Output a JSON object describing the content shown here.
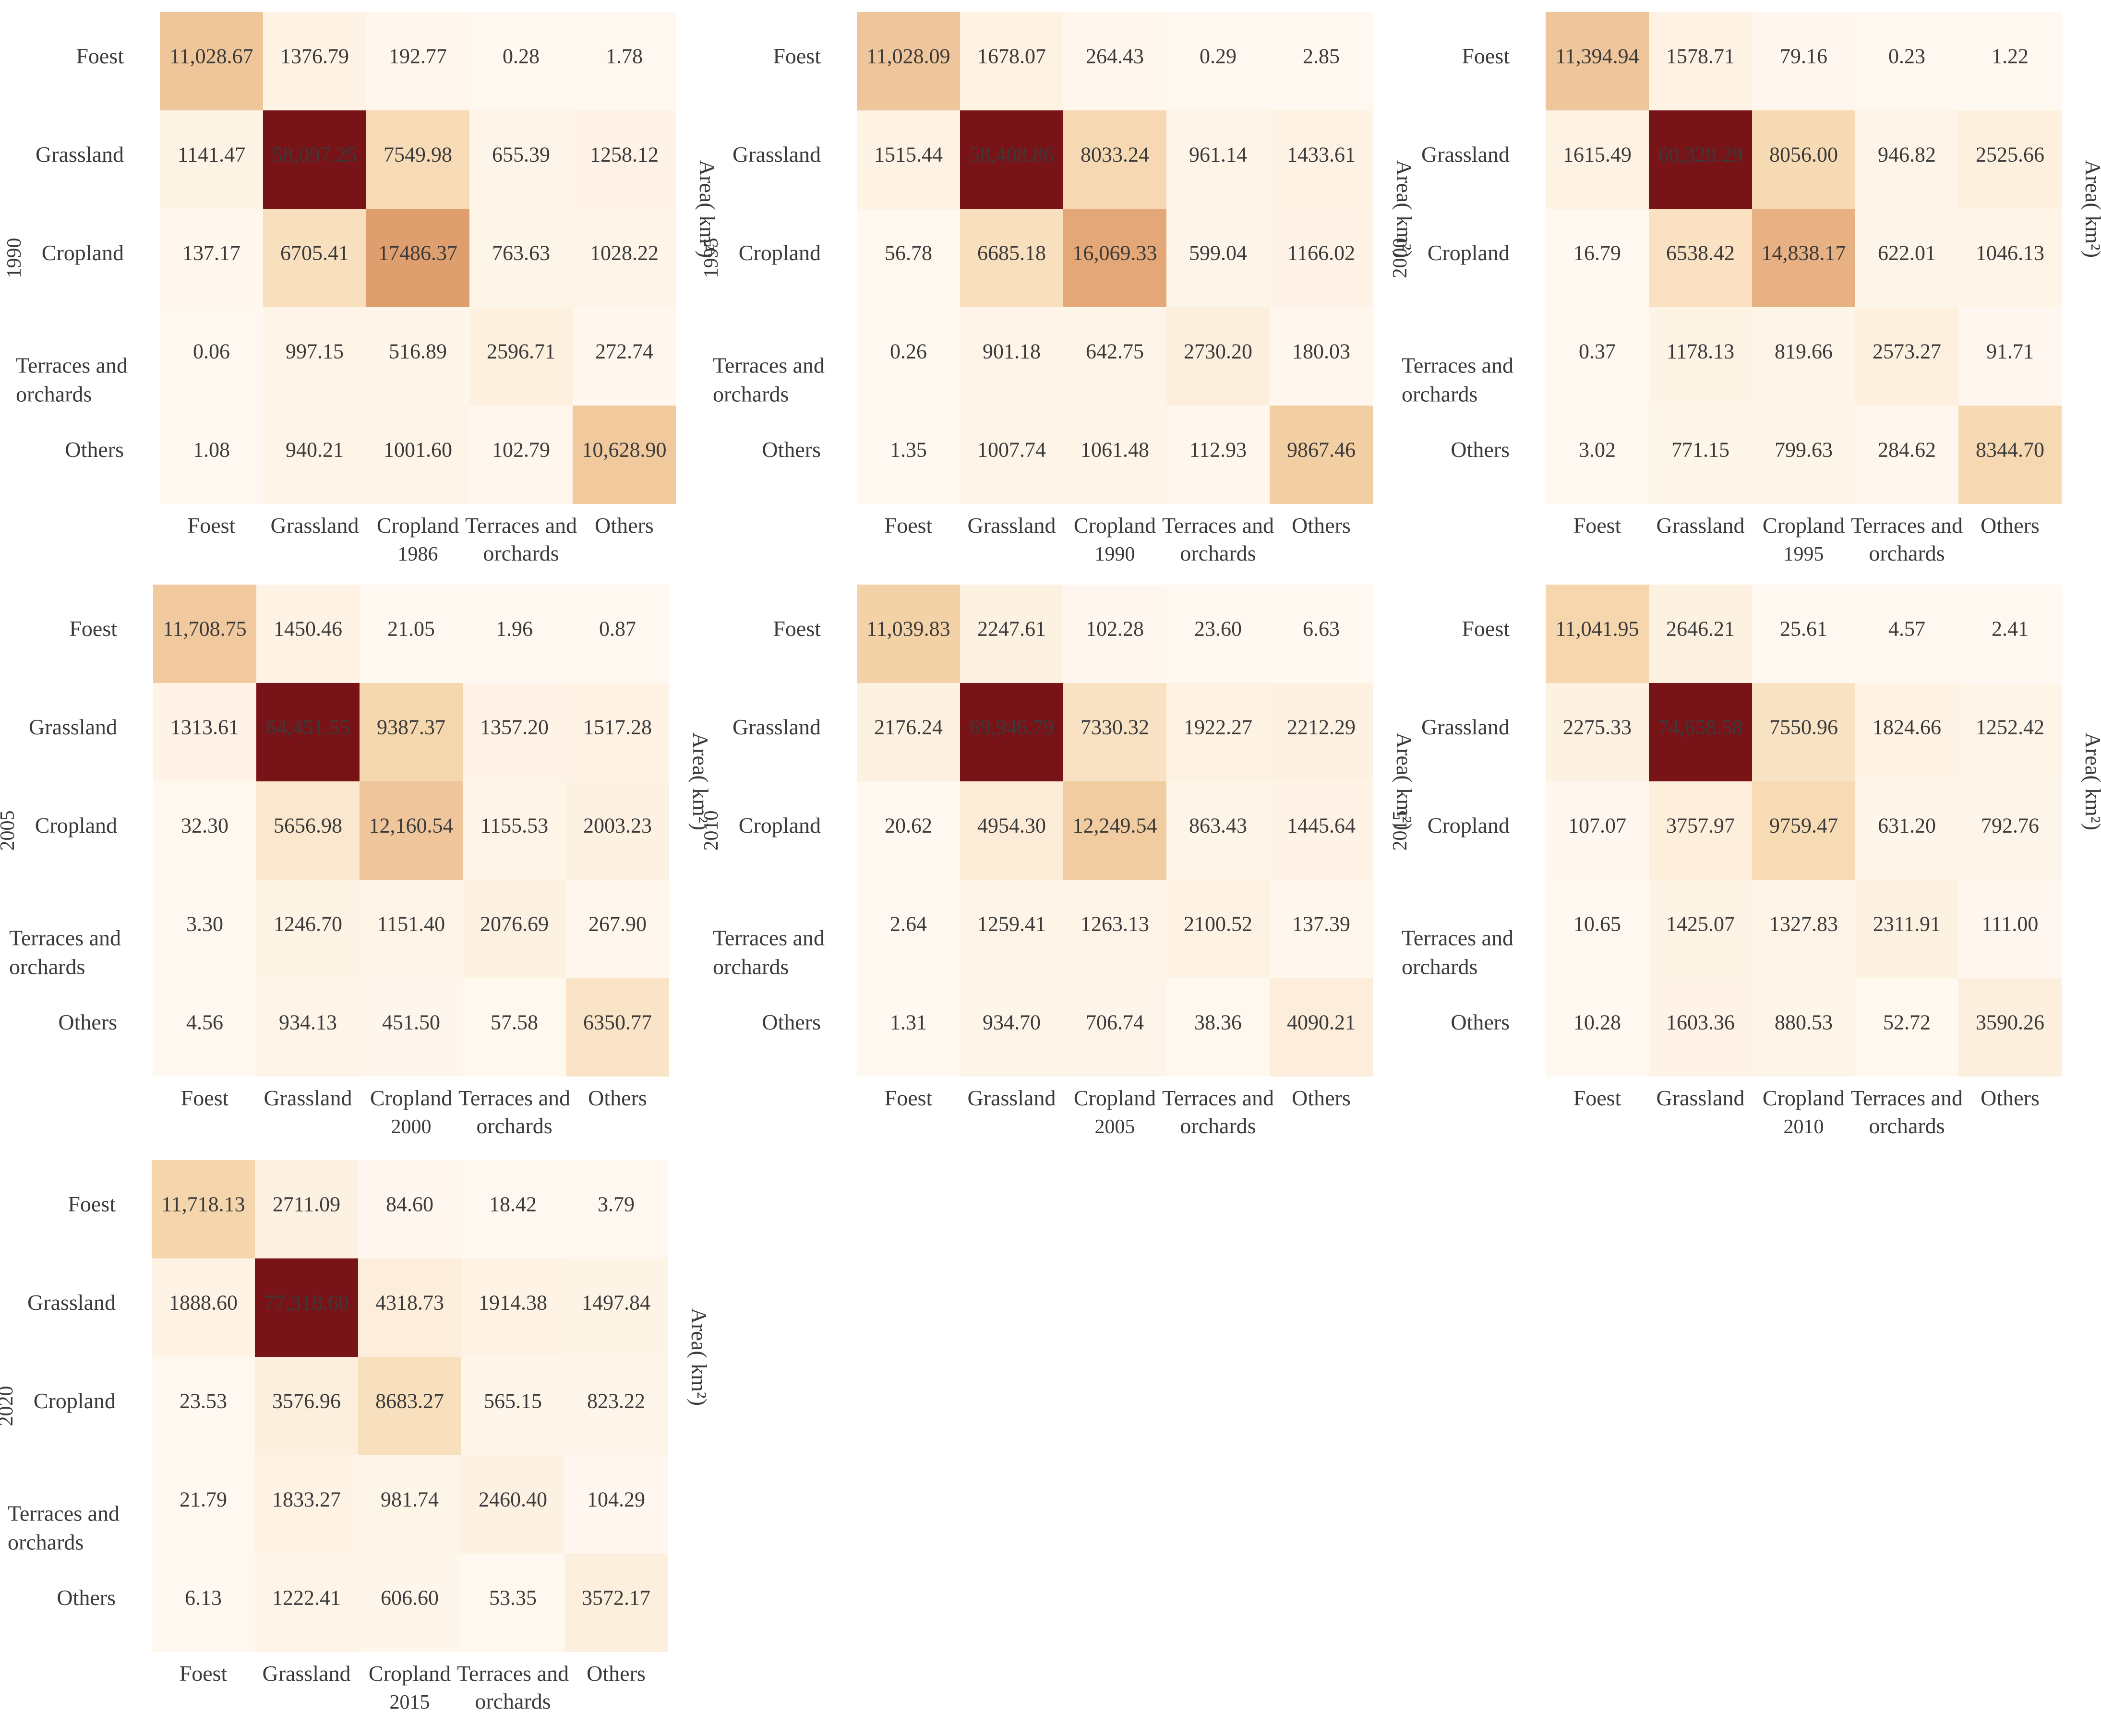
{
  "chart_data": [
    {
      "type": "heatmap",
      "ylabel": "1990",
      "xlabel": "1986",
      "colorbar_label": "Area( km²)",
      "rows": [
        "Foest",
        "Grassland",
        "Cropland",
        "Terraces and orchards",
        "Others"
      ],
      "cols": [
        "Foest",
        "Grassland",
        "Cropland",
        "Terraces and orchards",
        "Others"
      ],
      "values": [
        [
          11028.67,
          1376.79,
          192.77,
          0.28,
          1.78
        ],
        [
          1141.47,
          58097.25,
          7549.98,
          655.39,
          1258.12
        ],
        [
          137.17,
          6705.41,
          17486.37,
          763.63,
          1028.22
        ],
        [
          0.06,
          997.15,
          516.89,
          2596.71,
          272.74
        ],
        [
          1.08,
          940.21,
          1001.6,
          102.79,
          10628.9
        ]
      ],
      "labels": [
        [
          "11,028.67",
          "1376.79",
          "192.77",
          "0.28",
          "1.78"
        ],
        [
          "1141.47",
          "58,097.25",
          "7549.98",
          "655.39",
          "1258.12"
        ],
        [
          "137.17",
          "6705.41",
          "17486.37",
          "763.63",
          "1028.22"
        ],
        [
          "0.06",
          "997.15",
          "516.89",
          "2596.71",
          "272.74"
        ],
        [
          "1.08",
          "940.21",
          "1001.60",
          "102.79",
          "10,628.90"
        ]
      ]
    },
    {
      "type": "heatmap",
      "ylabel": "1995",
      "xlabel": "1990",
      "colorbar_label": "Area( km²)",
      "rows": [
        "Foest",
        "Grassland",
        "Cropland",
        "Terraces and orchards",
        "Others"
      ],
      "cols": [
        "Foest",
        "Grassland",
        "Cropland",
        "Terraces and orchards",
        "Others"
      ],
      "values": [
        [
          11028.09,
          1678.07,
          264.43,
          0.29,
          2.85
        ],
        [
          1515.44,
          58408.86,
          8033.24,
          961.14,
          1433.61
        ],
        [
          56.78,
          6685.18,
          16069.33,
          599.04,
          1166.02
        ],
        [
          0.26,
          901.18,
          642.75,
          2730.2,
          180.03
        ],
        [
          1.35,
          1007.74,
          1061.48,
          112.93,
          9867.46
        ]
      ],
      "labels": [
        [
          "11,028.09",
          "1678.07",
          "264.43",
          "0.29",
          "2.85"
        ],
        [
          "1515.44",
          "58,408.86",
          "8033.24",
          "961.14",
          "1433.61"
        ],
        [
          "56.78",
          "6685.18",
          "16,069.33",
          "599.04",
          "1166.02"
        ],
        [
          "0.26",
          "901.18",
          "642.75",
          "2730.20",
          "180.03"
        ],
        [
          "1.35",
          "1007.74",
          "1061.48",
          "112.93",
          "9867.46"
        ]
      ]
    },
    {
      "type": "heatmap",
      "ylabel": "2000",
      "xlabel": "1995",
      "colorbar_label": "Area( km²)",
      "rows": [
        "Foest",
        "Grassland",
        "Cropland",
        "Terraces and orchards",
        "Others"
      ],
      "cols": [
        "Foest",
        "Grassland",
        "Cropland",
        "Terraces and orchards",
        "Others"
      ],
      "values": [
        [
          11394.94,
          1578.71,
          79.16,
          0.23,
          1.22
        ],
        [
          1615.49,
          60328.29,
          8056.0,
          946.82,
          2525.66
        ],
        [
          16.79,
          6538.42,
          14838.17,
          622.01,
          1046.13
        ],
        [
          0.37,
          1178.13,
          819.66,
          2573.27,
          91.71
        ],
        [
          3.02,
          771.15,
          799.63,
          284.62,
          8344.7
        ]
      ],
      "labels": [
        [
          "11,394.94",
          "1578.71",
          "79.16",
          "0.23",
          "1.22"
        ],
        [
          "1615.49",
          "60,328.29",
          "8056.00",
          "946.82",
          "2525.66"
        ],
        [
          "16.79",
          "6538.42",
          "14,838.17",
          "622.01",
          "1046.13"
        ],
        [
          "0.37",
          "1178.13",
          "819.66",
          "2573.27",
          "91.71"
        ],
        [
          "3.02",
          "771.15",
          "799.63",
          "284.62",
          "8344.70"
        ]
      ]
    },
    {
      "type": "heatmap",
      "ylabel": "2005",
      "xlabel": "2000",
      "colorbar_label": "Area( km²)",
      "rows": [
        "Foest",
        "Grassland",
        "Cropland",
        "Terraces and orchards",
        "Others"
      ],
      "cols": [
        "Foest",
        "Grassland",
        "Cropland",
        "Terraces and orchards",
        "Others"
      ],
      "values": [
        [
          11708.75,
          1450.46,
          21.05,
          1.96,
          0.87
        ],
        [
          1313.61,
          64451.55,
          9387.37,
          1357.2,
          1517.28
        ],
        [
          32.3,
          5656.98,
          12160.54,
          1155.53,
          2003.23
        ],
        [
          3.3,
          1246.7,
          1151.4,
          2076.69,
          267.9
        ],
        [
          4.56,
          934.13,
          451.5,
          57.58,
          6350.77
        ]
      ],
      "labels": [
        [
          "11,708.75",
          "1450.46",
          "21.05",
          "1.96",
          "0.87"
        ],
        [
          "1313.61",
          "64,451.55",
          "9387.37",
          "1357.20",
          "1517.28"
        ],
        [
          "32.30",
          "5656.98",
          "12,160.54",
          "1155.53",
          "2003.23"
        ],
        [
          "3.30",
          "1246.70",
          "1151.40",
          "2076.69",
          "267.90"
        ],
        [
          "4.56",
          "934.13",
          "451.50",
          "57.58",
          "6350.77"
        ]
      ]
    },
    {
      "type": "heatmap",
      "ylabel": "2010",
      "xlabel": "2005",
      "colorbar_label": "Area( km²)",
      "rows": [
        "Foest",
        "Grassland",
        "Cropland",
        "Terraces and orchards",
        "Others"
      ],
      "cols": [
        "Foest",
        "Grassland",
        "Cropland",
        "Terraces and orchards",
        "Others"
      ],
      "values": [
        [
          11039.83,
          2247.61,
          102.28,
          23.6,
          6.63
        ],
        [
          2176.24,
          69946.79,
          7330.32,
          1922.27,
          2212.29
        ],
        [
          20.62,
          4954.3,
          12249.54,
          863.43,
          1445.64
        ],
        [
          2.64,
          1259.41,
          1263.13,
          2100.52,
          137.39
        ],
        [
          1.31,
          934.7,
          706.74,
          38.36,
          4090.21
        ]
      ],
      "labels": [
        [
          "11,039.83",
          "2247.61",
          "102.28",
          "23.60",
          "6.63"
        ],
        [
          "2176.24",
          "69,946.79",
          "7330.32",
          "1922.27",
          "2212.29"
        ],
        [
          "20.62",
          "4954.30",
          "12,249.54",
          "863.43",
          "1445.64"
        ],
        [
          "2.64",
          "1259.41",
          "1263.13",
          "2100.52",
          "137.39"
        ],
        [
          "1.31",
          "934.70",
          "706.74",
          "38.36",
          "4090.21"
        ]
      ]
    },
    {
      "type": "heatmap",
      "ylabel": "2015",
      "xlabel": "2010",
      "colorbar_label": "Area( km²)",
      "rows": [
        "Foest",
        "Grassland",
        "Cropland",
        "Terraces and orchards",
        "Others"
      ],
      "cols": [
        "Foest",
        "Grassland",
        "Cropland",
        "Terraces and orchards",
        "Others"
      ],
      "values": [
        [
          11041.95,
          2646.21,
          25.61,
          4.57,
          2.41
        ],
        [
          2275.33,
          74658.58,
          7550.96,
          1824.66,
          1252.42
        ],
        [
          107.07,
          3757.97,
          9759.47,
          631.2,
          792.76
        ],
        [
          10.65,
          1425.07,
          1327.83,
          2311.91,
          111.0
        ],
        [
          10.28,
          1603.36,
          880.53,
          52.72,
          3590.26
        ]
      ],
      "labels": [
        [
          "11,041.95",
          "2646.21",
          "25.61",
          "4.57",
          "2.41"
        ],
        [
          "2275.33",
          "74,658.58",
          "7550.96",
          "1824.66",
          "1252.42"
        ],
        [
          "107.07",
          "3757.97",
          "9759.47",
          "631.20",
          "792.76"
        ],
        [
          "10.65",
          "1425.07",
          "1327.83",
          "2311.91",
          "111.00"
        ],
        [
          "10.28",
          "1603.36",
          "880.53",
          "52.72",
          "3590.26"
        ]
      ]
    },
    {
      "type": "heatmap",
      "ylabel": "2020",
      "xlabel": "2015",
      "colorbar_label": "Area( km²)",
      "rows": [
        "Foest",
        "Grassland",
        "Cropland",
        "Terraces and orchards",
        "Others"
      ],
      "cols": [
        "Foest",
        "Grassland",
        "Cropland",
        "Terraces and orchards",
        "Others"
      ],
      "values": [
        [
          11718.13,
          2711.09,
          84.6,
          18.42,
          3.79
        ],
        [
          1888.6,
          77318.6,
          4318.73,
          1914.38,
          1497.84
        ],
        [
          23.53,
          3576.96,
          8683.27,
          565.15,
          823.22
        ],
        [
          21.79,
          1833.27,
          981.74,
          2460.4,
          104.29
        ],
        [
          6.13,
          1222.41,
          606.6,
          53.35,
          3572.17
        ]
      ],
      "labels": [
        [
          "11,718.13",
          "2711.09",
          "84.60",
          "18.42",
          "3.79"
        ],
        [
          "1888.60",
          "77,318.60",
          "4318.73",
          "1914.38",
          "1497.84"
        ],
        [
          "23.53",
          "3576.96",
          "8683.27",
          "565.15",
          "823.22"
        ],
        [
          "21.79",
          "1833.27",
          "981.74",
          "2460.40",
          "104.29"
        ],
        [
          "6.13",
          "1222.41",
          "606.60",
          "53.35",
          "3572.17"
        ]
      ]
    }
  ]
}
